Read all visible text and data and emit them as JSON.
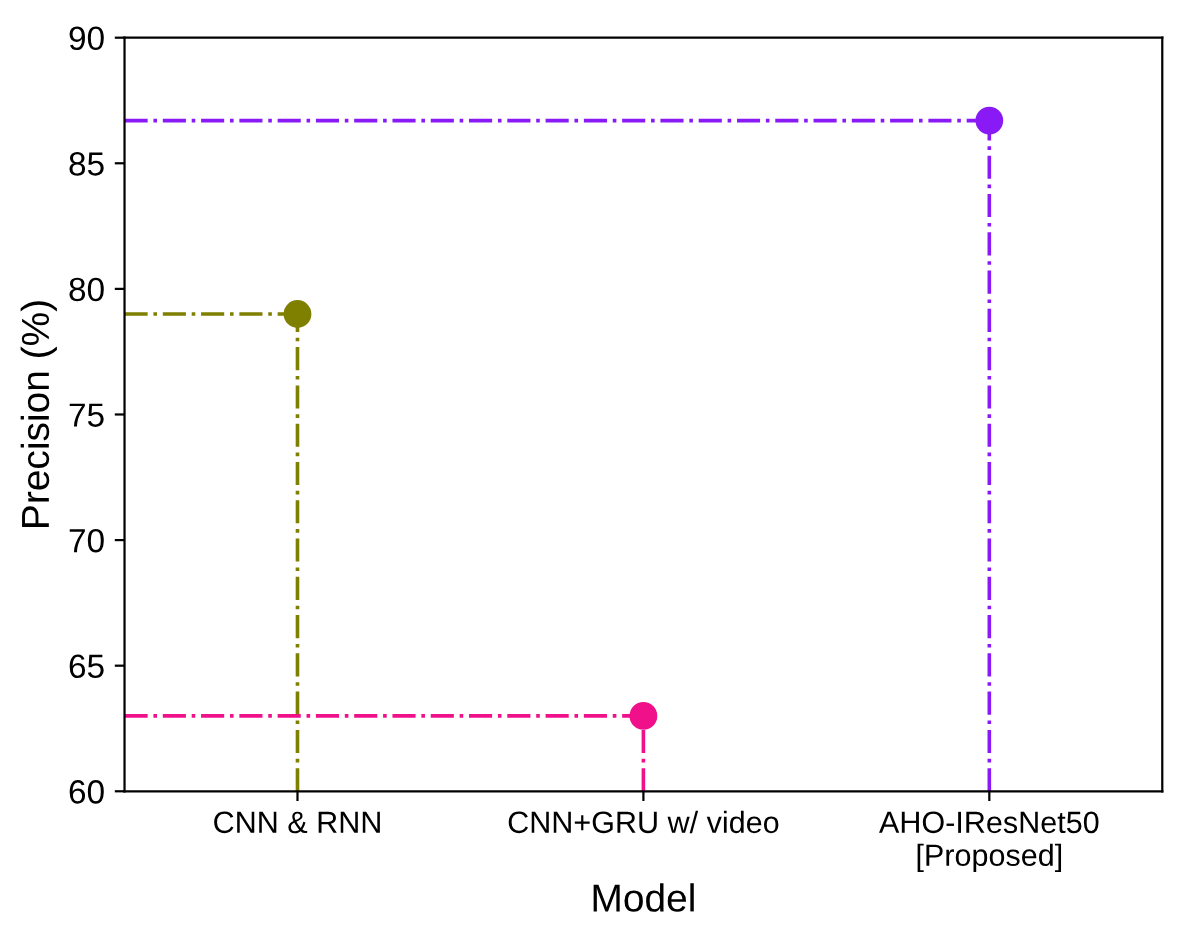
{
  "chart_data": {
    "type": "lollipop",
    "xlabel": "Model",
    "ylabel": "Precision (%)",
    "categories": [
      "CNN & RNN",
      "CNN+GRU w/ video",
      "AHO-IResNet50\n[Proposed]"
    ],
    "values": [
      79.0,
      63.0,
      86.7
    ],
    "colors": [
      "#7f7f00",
      "#f0108a",
      "#8a1af5"
    ],
    "ylim": [
      60,
      90
    ],
    "yticks": [
      60,
      65,
      70,
      75,
      80,
      85,
      90
    ],
    "ref_lines": [
      {
        "axis": "y",
        "value": 79.0,
        "color": "#7f7f00",
        "line_style": "dashdot"
      },
      {
        "axis": "y",
        "value": 63.0,
        "color": "#f0108a",
        "line_style": "dashdot"
      },
      {
        "axis": "y",
        "value": 86.7,
        "color": "#8a1af5",
        "line_style": "dashdot"
      }
    ],
    "marker": "circle",
    "line_style": "dashdot",
    "grid": false
  }
}
